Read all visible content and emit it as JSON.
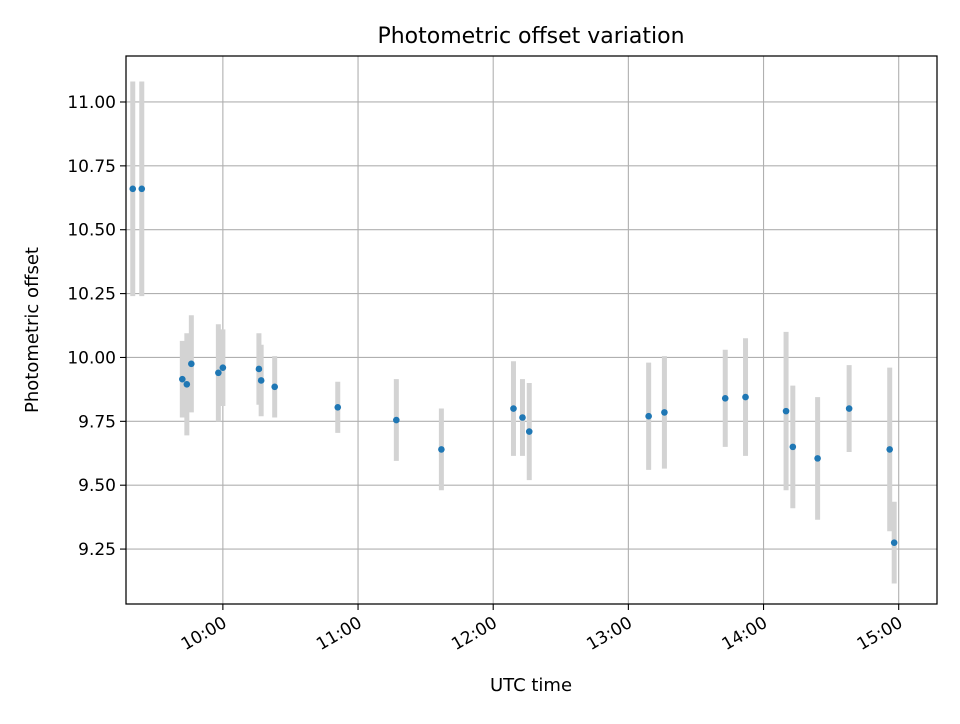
{
  "chart_data": {
    "type": "scatter",
    "title": "Photometric offset variation",
    "xlabel": "UTC time",
    "ylabel": "Photometric offset",
    "x_axis": "time",
    "xlim": [
      "09:17",
      "15:17"
    ],
    "ylim": [
      9.035,
      11.18
    ],
    "x_ticks": [
      "10:00",
      "11:00",
      "12:00",
      "13:00",
      "14:00",
      "15:00"
    ],
    "y_ticks": [
      "9.25",
      "9.50",
      "9.75",
      "10.00",
      "10.25",
      "10.50",
      "10.75",
      "11.00"
    ],
    "grid": true,
    "colors": {
      "point": "#1f77b4",
      "errorbar": "#d3d3d3",
      "grid": "#b0b0b0"
    },
    "points": [
      {
        "x": "09:20",
        "y": 10.66,
        "err": 0.42
      },
      {
        "x": "09:24",
        "y": 10.66,
        "err": 0.42
      },
      {
        "x": "09:42",
        "y": 9.915,
        "err": 0.15
      },
      {
        "x": "09:44",
        "y": 9.895,
        "err": 0.2
      },
      {
        "x": "09:46",
        "y": 9.975,
        "err": 0.19
      },
      {
        "x": "09:58",
        "y": 9.94,
        "err": 0.19
      },
      {
        "x": "10:00",
        "y": 9.96,
        "err": 0.15
      },
      {
        "x": "10:16",
        "y": 9.955,
        "err": 0.14
      },
      {
        "x": "10:17",
        "y": 9.91,
        "err": 0.14
      },
      {
        "x": "10:23",
        "y": 9.885,
        "err": 0.12
      },
      {
        "x": "10:51",
        "y": 9.805,
        "err": 0.1
      },
      {
        "x": "11:17",
        "y": 9.755,
        "err": 0.16
      },
      {
        "x": "11:37",
        "y": 9.64,
        "err": 0.16
      },
      {
        "x": "12:09",
        "y": 9.8,
        "err": 0.185
      },
      {
        "x": "12:13",
        "y": 9.765,
        "err": 0.15
      },
      {
        "x": "12:16",
        "y": 9.71,
        "err": 0.19
      },
      {
        "x": "13:09",
        "y": 9.77,
        "err": 0.21
      },
      {
        "x": "13:16",
        "y": 9.785,
        "err": 0.22
      },
      {
        "x": "13:43",
        "y": 9.84,
        "err": 0.19
      },
      {
        "x": "13:52",
        "y": 9.845,
        "err": 0.23
      },
      {
        "x": "14:10",
        "y": 9.79,
        "err": 0.31
      },
      {
        "x": "14:13",
        "y": 9.65,
        "err": 0.24
      },
      {
        "x": "14:24",
        "y": 9.605,
        "err": 0.24
      },
      {
        "x": "14:38",
        "y": 9.8,
        "err": 0.17
      },
      {
        "x": "14:56",
        "y": 9.64,
        "err": 0.32
      },
      {
        "x": "14:58",
        "y": 9.275,
        "err": 0.16
      }
    ]
  }
}
